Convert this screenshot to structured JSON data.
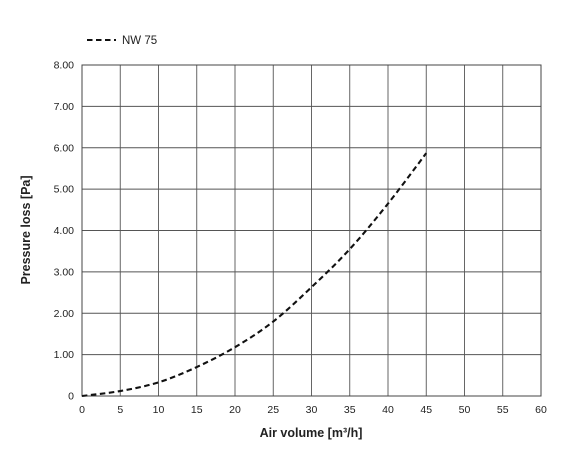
{
  "chart_data": {
    "type": "line",
    "xlabel": "Air volume [m³/h]",
    "ylabel": "Pressure loss [Pa]",
    "xlim": [
      0,
      60
    ],
    "ylim": [
      0,
      8
    ],
    "x_ticks": [
      "0",
      "5",
      "10",
      "15",
      "20",
      "25",
      "30",
      "35",
      "40",
      "45",
      "50",
      "55",
      "60"
    ],
    "y_ticks": [
      "0",
      "1.00",
      "2.00",
      "3.00",
      "4.00",
      "5.00",
      "6.00",
      "7.00",
      "8.00"
    ],
    "grid": true,
    "legend_position": "top-left",
    "series": [
      {
        "name": "NW 75",
        "line_style": "dashed",
        "color": "#111111",
        "x": [
          0,
          5,
          10,
          15,
          20,
          25,
          30,
          35,
          40,
          45
        ],
        "y": [
          0,
          0.12,
          0.33,
          0.7,
          1.18,
          1.8,
          2.63,
          3.55,
          4.65,
          5.87
        ]
      }
    ]
  }
}
